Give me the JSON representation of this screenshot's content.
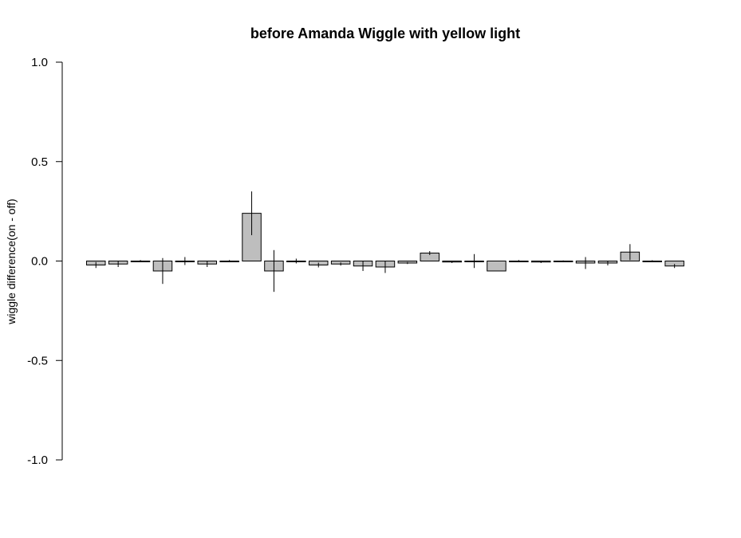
{
  "chart_data": {
    "type": "bar",
    "title": "before Amanda Wiggle with yellow light",
    "xlabel": "",
    "ylabel": "wiggle difference(on - off)",
    "ylim": [
      -1.0,
      1.0
    ],
    "yticks": [
      "-1.0",
      "-0.5",
      "0.0",
      "0.5",
      "1.0"
    ],
    "grid": false,
    "bar_color": "#bebebe",
    "values": [
      -0.02,
      -0.015,
      0.0,
      -0.05,
      0.0,
      -0.015,
      0.0,
      0.24,
      -0.05,
      0.0,
      -0.02,
      -0.015,
      -0.025,
      -0.03,
      -0.01,
      0.04,
      -0.005,
      0.0,
      -0.05,
      0.0,
      -0.005,
      0.0,
      -0.01,
      -0.01,
      0.045,
      0.0,
      -0.025
    ],
    "error": [
      0.015,
      0.015,
      0.005,
      0.065,
      0.02,
      0.015,
      0.005,
      0.11,
      0.105,
      0.012,
      0.012,
      0.008,
      0.025,
      0.03,
      0.005,
      0.01,
      0.005,
      0.035,
      0.0,
      0.005,
      0.005,
      0.003,
      0.03,
      0.012,
      0.04,
      0.004,
      0.01
    ]
  }
}
